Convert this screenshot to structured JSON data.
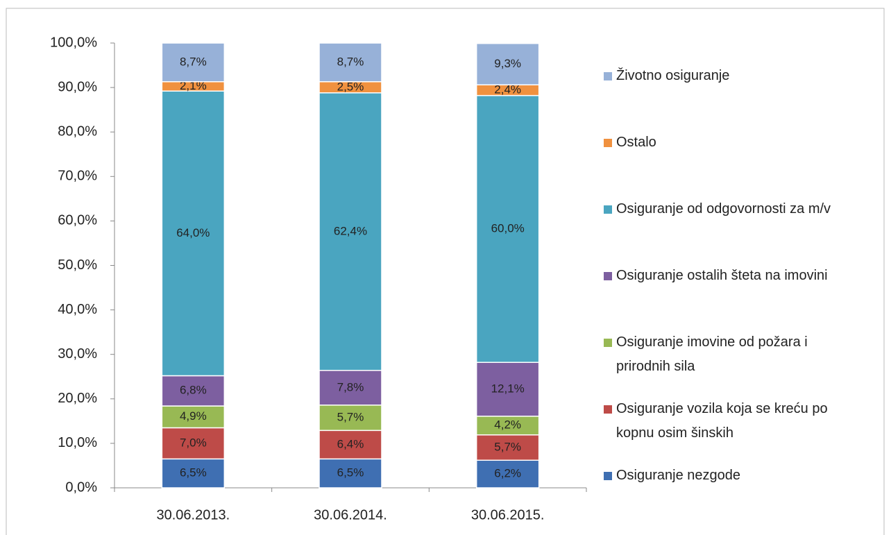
{
  "chart_data": {
    "type": "stacked_bar",
    "categories": [
      "30.06.2013.",
      "30.06.2014.",
      "30.06.2015."
    ],
    "ylim": [
      0,
      100
    ],
    "yticks": [
      {
        "value": 0,
        "label": "0,0%"
      },
      {
        "value": 10,
        "label": "10,0%"
      },
      {
        "value": 20,
        "label": "20,0%"
      },
      {
        "value": 30,
        "label": "30,0%"
      },
      {
        "value": 40,
        "label": "40,0%"
      },
      {
        "value": 50,
        "label": "50,0%"
      },
      {
        "value": 60,
        "label": "60,0%"
      },
      {
        "value": 70,
        "label": "70,0%"
      },
      {
        "value": 80,
        "label": "80,0%"
      },
      {
        "value": 90,
        "label": "90,0%"
      },
      {
        "value": 100,
        "label": "100,0%"
      }
    ],
    "legend": "right",
    "series": [
      {
        "name": "Osiguranje nezgode",
        "color": "#3f6fb2",
        "values": [
          6.5,
          6.5,
          6.2
        ],
        "value_labels": [
          "6,5%",
          "6,5%",
          "6,2%"
        ]
      },
      {
        "name": "Osiguranje vozila koja se kreću po kopnu osim šinskih",
        "color": "#be4b48",
        "values": [
          7.0,
          6.4,
          5.7
        ],
        "value_labels": [
          "7,0%",
          "6,4%",
          "5,7%"
        ]
      },
      {
        "name": "Osiguranje imovine od požara i prirodnih sila",
        "color": "#98b954",
        "values": [
          4.9,
          5.7,
          4.2
        ],
        "value_labels": [
          "4,9%",
          "5,7%",
          "4,2%"
        ]
      },
      {
        "name": "Osiguranje ostalih šteta na imovini",
        "color": "#7d5fa0",
        "values": [
          6.8,
          7.8,
          12.1
        ],
        "value_labels": [
          "6,8%",
          "7,8%",
          "12,1%"
        ]
      },
      {
        "name": "Osiguranje od odgovornosti za m/v",
        "color": "#4aa5c0",
        "values": [
          64.0,
          62.4,
          60.0
        ],
        "value_labels": [
          "64,0%",
          "62,4%",
          "60,0%"
        ]
      },
      {
        "name": "Ostalo",
        "color": "#f0913f",
        "values": [
          2.1,
          2.5,
          2.4
        ],
        "value_labels": [
          "2,1%",
          "2,5%",
          "2,4%"
        ]
      },
      {
        "name": "Životno osiguranje",
        "color": "#97b1d8",
        "values": [
          8.7,
          8.7,
          9.3
        ],
        "value_labels": [
          "8,7%",
          "8,7%",
          "9,3%"
        ]
      }
    ]
  }
}
